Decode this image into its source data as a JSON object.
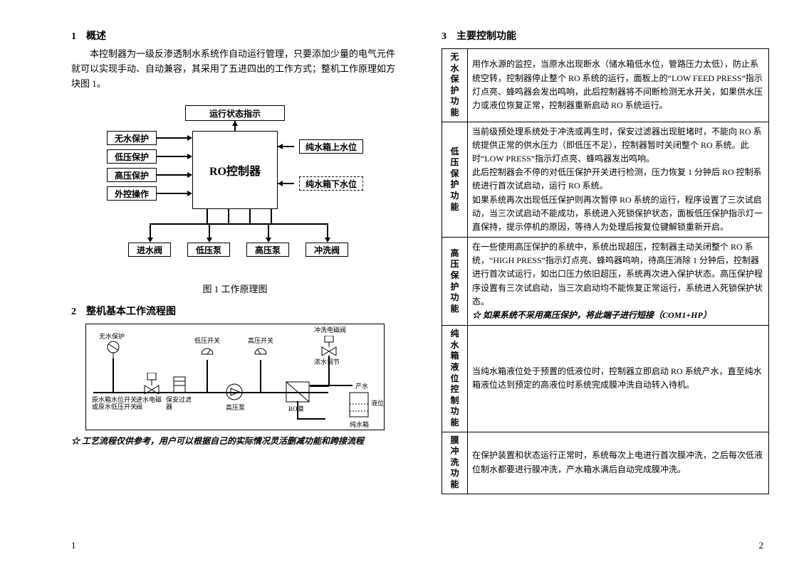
{
  "left": {
    "sec1_title": "1　概述",
    "sec1_para": "本控制器为一级反渗透制水系统作自动运行管理，只要添加少量的电气元件就可以实现手动、自动兼容，其采用了五进四出的工作方式；整机工作原理如方块图 1。",
    "diagram": {
      "top": "运行状态指示",
      "center": "RO控制器",
      "left_inputs": [
        "无水保护",
        "低压保护",
        "高压保护",
        "外控操作"
      ],
      "right_outputs": [
        "纯水箱上水位",
        "纯水箱下水位"
      ],
      "bottom_outputs": [
        "进水阀",
        "低压泵",
        "高压泵",
        "冲洗阀"
      ],
      "caption": "图 1  工作原理图"
    },
    "sec2_title": "2　整机基本工作流程图",
    "flow_labels": {
      "l1": "无水保护",
      "l2": "原水箱水位开关或原水低压开关",
      "l3": "进水电磁阀",
      "l4": "保安过滤器",
      "l5": "低压开关",
      "l6": "高压泵",
      "l7": "高压开关",
      "l8": "RO膜",
      "l9": "产水",
      "l10": "冲洗电磁阀",
      "l11": "浓水调节",
      "l12": "纯水箱",
      "l13": "液位"
    },
    "note": "☆  工艺流程仅供参考，用户可以根据自己的实际情况灵活删减功能和跨接流程",
    "pagenum": "1"
  },
  "right": {
    "sec3_title": "3　主要控制功能",
    "table": [
      {
        "head": "无水保护功能",
        "body": "用作水源的监控，当原水出现断水（储水箱低水位，管路压力太低），防止系统空转，控制器停止整个 RO 系统的运行，面板上的“LOW FEED PRESS”指示灯点亮、蜂鸣器会发出鸣响，此后控制器将不间断检测无水开关，如果供水压力或液位恢复正常，控制器重新启动 RO 系统运行。"
      },
      {
        "head": "低压保护功能",
        "body": "当前级预处理系统处于冲洗或再生时，保安过滤器出现脏堵时，不能向 RO 系统提供正常的供水压力（即低压不足），控制器暂时关闭整个 RO 系统。此时“LOW PRESS”指示灯点亮、蜂鸣器发出鸣响。\n此后控制器会不停的对低压保护开关进行检测，压力恢复 1 分钟后 RO 控制系统进行首次试启动，运行 RO 系统。\n如果系统再次出现低压保护则再次暂停 RO 系统的运行，程序设置了三次试启动，当三次试启动不能成功，系统进入死锁保护状态，面板低压保护指示灯一直保持，提示停机的原因，等待人为处理后按复位键解锁重新开启。"
      },
      {
        "head": "高压保护功能",
        "body": "在一些使用高压保护的系统中，系统出现超压，控制器主动关闭整个 RO 系统，“HIGH PRESS”指示灯点亮、蜂鸣器鸣响，待高压消除 1 分钟后，控制器进行首次试运行，如出口压力依旧超压，系统再次进入保护状态。高压保护程序设置有三次试启动，当三次启动均不能恢复正常运行，系统进入死锁保护状态。",
        "star": "☆  如果系统不采用高压保护，将此端子进行短接（COM1+HP）"
      },
      {
        "head": "纯水箱液位控制功能",
        "body": "当纯水箱液位处于预置的低液位时，控制器立即启动 RO 系统产水，直至纯水箱液位达到预定的高液位时系统完成膜冲洗自动转入待机。"
      },
      {
        "head": "膜冲洗功能",
        "body": "在保护装置和状态运行正常时，系统每次上电进行首次膜冲洗，之后每次低液位制水都要进行膜冲洗，产水箱水满后自动完成膜冲洗。"
      }
    ],
    "pagenum": "2"
  }
}
